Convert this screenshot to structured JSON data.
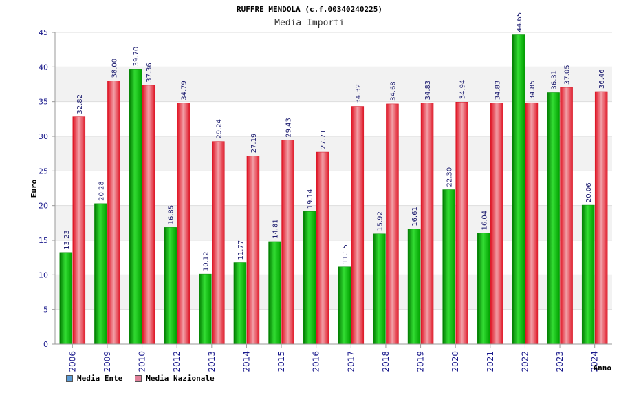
{
  "chart_data": {
    "type": "bar",
    "title": "RUFFRE MENDOLA (c.f.00340240225)",
    "subtitle": "Media Importi",
    "xlabel": "Anno",
    "ylabel": "Euro",
    "ylim": [
      0,
      45
    ],
    "yticks": [
      0,
      5,
      10,
      15,
      20,
      25,
      30,
      35,
      40,
      45
    ],
    "grid": true,
    "legend_position": "bottom-left",
    "categories": [
      "2006",
      "2009",
      "2010",
      "2012",
      "2013",
      "2014",
      "2015",
      "2016",
      "2017",
      "2018",
      "2019",
      "2020",
      "2021",
      "2022",
      "2023",
      "2024"
    ],
    "series": [
      {
        "name": "Media Ente",
        "color": "#00b000",
        "legend_color": "#5b9bd5",
        "values": [
          13.23,
          20.28,
          39.7,
          16.85,
          10.12,
          11.77,
          14.81,
          19.14,
          11.15,
          15.92,
          16.61,
          22.3,
          16.04,
          44.65,
          36.31,
          20.06
        ],
        "labels": [
          "13.23",
          "20.28",
          "39.70",
          "16.85",
          "10.12",
          "11.77",
          "14.81",
          "19.14",
          "11.15",
          "15.92",
          "16.61",
          "22.30",
          "16.04",
          "44.65",
          "36.31",
          "20.06"
        ]
      },
      {
        "name": "Media Nazionale",
        "color": "#e8303a",
        "legend_color": "#e0809a",
        "values": [
          32.82,
          38.0,
          37.36,
          34.79,
          29.24,
          27.19,
          29.43,
          27.71,
          34.32,
          34.68,
          34.83,
          34.94,
          34.83,
          34.85,
          37.05,
          36.46
        ],
        "labels": [
          "32.82",
          "38.00",
          "37.36",
          "34.79",
          "29.24",
          "27.19",
          "29.43",
          "27.71",
          "34.32",
          "34.68",
          "34.83",
          "34.94",
          "34.83",
          "34.85",
          "37.05",
          "36.46"
        ]
      }
    ]
  }
}
